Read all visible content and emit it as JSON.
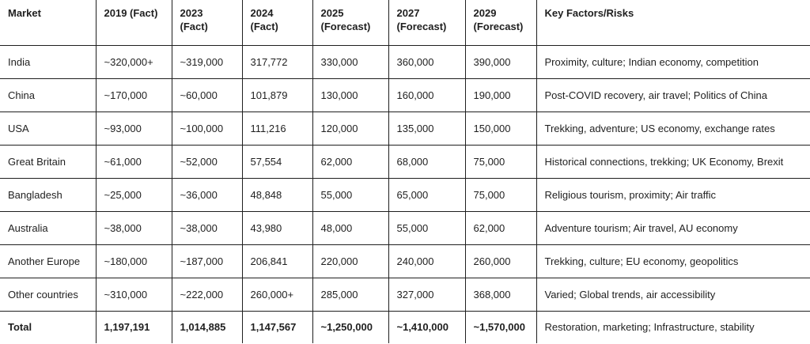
{
  "headers": [
    {
      "line1": "Market",
      "line2": ""
    },
    {
      "line1": "2019 (Fact)",
      "line2": ""
    },
    {
      "line1": "2023",
      "line2": "(Fact)"
    },
    {
      "line1": "2024",
      "line2": "(Fact)"
    },
    {
      "line1": "2025",
      "line2": "(Forecast)"
    },
    {
      "line1": "2027",
      "line2": "(Forecast)"
    },
    {
      "line1": "2029",
      "line2": "(Forecast)"
    },
    {
      "line1": "Key Factors/Risks",
      "line2": ""
    }
  ],
  "rows": [
    [
      "India",
      "~320,000+",
      "~319,000",
      "317,772",
      "330,000",
      "360,000",
      "390,000",
      "Proximity, culture; Indian economy, competition"
    ],
    [
      "China",
      "~170,000",
      "~60,000",
      "101,879",
      "130,000",
      "160,000",
      "190,000",
      "Post-COVID recovery, air travel; Politics of China"
    ],
    [
      "USA",
      "~93,000",
      "~100,000",
      "111,216",
      "120,000",
      "135,000",
      "150,000",
      "Trekking, adventure; US economy, exchange rates"
    ],
    [
      "Great Britain",
      "~61,000",
      "~52,000",
      "57,554",
      "62,000",
      "68,000",
      "75,000",
      "Historical connections, trekking; UK Economy, Brexit"
    ],
    [
      "Bangladesh",
      "~25,000",
      "~36,000",
      "48,848",
      "55,000",
      "65,000",
      "75,000",
      "Religious tourism, proximity; Air traffic"
    ],
    [
      "Australia",
      "~38,000",
      "~38,000",
      "43,980",
      "48,000",
      "55,000",
      "62,000",
      "Adventure tourism; Air travel, AU economy"
    ],
    [
      "Another Europe",
      "~180,000",
      "~187,000",
      "206,841",
      "220,000",
      "240,000",
      "260,000",
      "Trekking, culture; EU economy, geopolitics"
    ],
    [
      "Other countries",
      "~310,000",
      "~222,000",
      "260,000+",
      "285,000",
      "327,000",
      "368,000",
      "Varied; Global trends, air accessibility"
    ]
  ],
  "total": [
    "Total",
    "1,197,191",
    "1,014,885",
    "1,147,567",
    "~1,250,000",
    "~1,410,000",
    "~1,570,000",
    "Restoration, marketing; Infrastructure, stability"
  ]
}
